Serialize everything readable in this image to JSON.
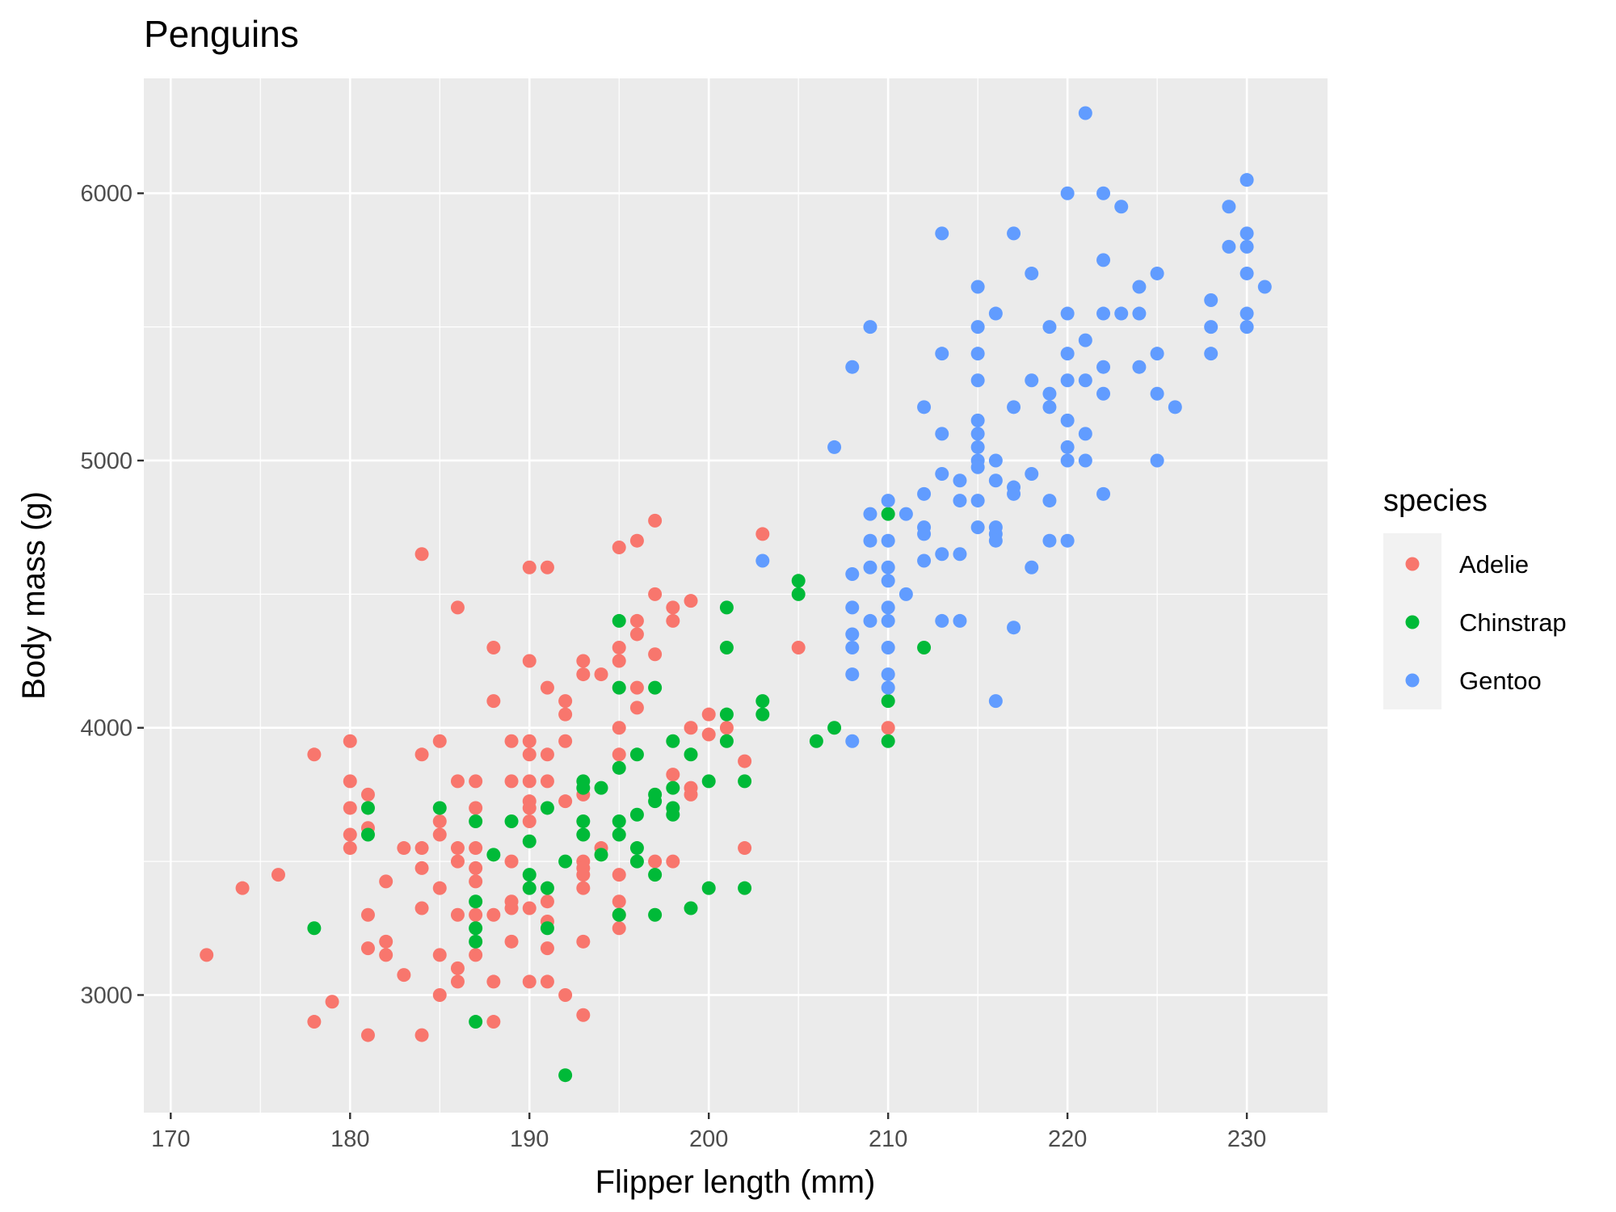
{
  "chart_data": {
    "type": "scatter",
    "title": "Penguins",
    "xlabel": "Flipper length (mm)",
    "ylabel": "Body mass (g)",
    "xlim": [
      168.5,
      234.5
    ],
    "ylim": [
      2560,
      6430
    ],
    "x_ticks": [
      170,
      180,
      190,
      200,
      210,
      220,
      230
    ],
    "y_ticks": [
      3000,
      4000,
      5000,
      6000
    ],
    "grid": true,
    "legend": {
      "title": "species",
      "position": "right"
    },
    "series": [
      {
        "name": "Adelie",
        "color": "#F8766D",
        "points": [
          [
            172,
            3150
          ],
          [
            174,
            3400
          ],
          [
            176,
            3450
          ],
          [
            178,
            3900
          ],
          [
            178,
            2900
          ],
          [
            179,
            2975
          ],
          [
            180,
            3950
          ],
          [
            180,
            3800
          ],
          [
            180,
            3700
          ],
          [
            180,
            3600
          ],
          [
            180,
            3550
          ],
          [
            181,
            3750
          ],
          [
            181,
            3625
          ],
          [
            181,
            3300
          ],
          [
            181,
            3175
          ],
          [
            181,
            2850
          ],
          [
            182,
            3425
          ],
          [
            182,
            3200
          ],
          [
            182,
            3150
          ],
          [
            183,
            3550
          ],
          [
            183,
            3075
          ],
          [
            184,
            4650
          ],
          [
            184,
            3900
          ],
          [
            184,
            3550
          ],
          [
            184,
            3475
          ],
          [
            184,
            3325
          ],
          [
            184,
            2850
          ],
          [
            185,
            3950
          ],
          [
            185,
            3650
          ],
          [
            185,
            3600
          ],
          [
            185,
            3400
          ],
          [
            185,
            3150
          ],
          [
            185,
            3000
          ],
          [
            186,
            4450
          ],
          [
            186,
            3800
          ],
          [
            186,
            3550
          ],
          [
            186,
            3500
          ],
          [
            186,
            3300
          ],
          [
            186,
            3100
          ],
          [
            186,
            3050
          ],
          [
            187,
            3800
          ],
          [
            187,
            3700
          ],
          [
            187,
            3550
          ],
          [
            187,
            3475
          ],
          [
            187,
            3425
          ],
          [
            187,
            3300
          ],
          [
            187,
            3150
          ],
          [
            188,
            4300
          ],
          [
            188,
            4100
          ],
          [
            188,
            3300
          ],
          [
            188,
            3050
          ],
          [
            188,
            2900
          ],
          [
            189,
            3950
          ],
          [
            189,
            3800
          ],
          [
            189,
            3500
          ],
          [
            189,
            3350
          ],
          [
            189,
            3325
          ],
          [
            189,
            3200
          ],
          [
            190,
            4600
          ],
          [
            190,
            4250
          ],
          [
            190,
            3950
          ],
          [
            190,
            3900
          ],
          [
            190,
            3800
          ],
          [
            190,
            3725
          ],
          [
            190,
            3700
          ],
          [
            190,
            3650
          ],
          [
            190,
            3325
          ],
          [
            190,
            3050
          ],
          [
            191,
            4600
          ],
          [
            191,
            4150
          ],
          [
            191,
            3900
          ],
          [
            191,
            3800
          ],
          [
            191,
            3350
          ],
          [
            191,
            3275
          ],
          [
            191,
            3175
          ],
          [
            191,
            3050
          ],
          [
            192,
            4100
          ],
          [
            192,
            4050
          ],
          [
            192,
            3950
          ],
          [
            192,
            3725
          ],
          [
            192,
            3000
          ],
          [
            193,
            4250
          ],
          [
            193,
            4200
          ],
          [
            193,
            3750
          ],
          [
            193,
            3500
          ],
          [
            193,
            3475
          ],
          [
            193,
            3450
          ],
          [
            193,
            3400
          ],
          [
            193,
            3200
          ],
          [
            193,
            2925
          ],
          [
            194,
            4200
          ],
          [
            194,
            3550
          ],
          [
            195,
            4675
          ],
          [
            195,
            4300
          ],
          [
            195,
            4250
          ],
          [
            195,
            4000
          ],
          [
            195,
            3900
          ],
          [
            195,
            3450
          ],
          [
            195,
            3350
          ],
          [
            195,
            3300
          ],
          [
            195,
            3250
          ],
          [
            196,
            4700
          ],
          [
            196,
            4400
          ],
          [
            196,
            4350
          ],
          [
            196,
            4150
          ],
          [
            196,
            4075
          ],
          [
            197,
            4775
          ],
          [
            197,
            4500
          ],
          [
            197,
            4275
          ],
          [
            197,
            3500
          ],
          [
            198,
            4450
          ],
          [
            198,
            4400
          ],
          [
            198,
            3825
          ],
          [
            198,
            3500
          ],
          [
            199,
            4475
          ],
          [
            199,
            4000
          ],
          [
            199,
            3775
          ],
          [
            199,
            3750
          ],
          [
            200,
            4050
          ],
          [
            200,
            3975
          ],
          [
            201,
            4000
          ],
          [
            202,
            3875
          ],
          [
            202,
            3550
          ],
          [
            203,
            4725
          ],
          [
            205,
            4300
          ],
          [
            210,
            4000
          ]
        ]
      },
      {
        "name": "Chinstrap",
        "color": "#00BA38",
        "points": [
          [
            178,
            3250
          ],
          [
            181,
            3700
          ],
          [
            181,
            3600
          ],
          [
            185,
            3700
          ],
          [
            187,
            3650
          ],
          [
            187,
            3350
          ],
          [
            187,
            3250
          ],
          [
            187,
            3200
          ],
          [
            187,
            2900
          ],
          [
            188,
            3525
          ],
          [
            189,
            3650
          ],
          [
            190,
            3575
          ],
          [
            190,
            3450
          ],
          [
            190,
            3400
          ],
          [
            191,
            3700
          ],
          [
            191,
            3400
          ],
          [
            191,
            3250
          ],
          [
            192,
            3500
          ],
          [
            192,
            2700
          ],
          [
            193,
            3800
          ],
          [
            193,
            3775
          ],
          [
            193,
            3650
          ],
          [
            193,
            3600
          ],
          [
            194,
            3775
          ],
          [
            194,
            3525
          ],
          [
            195,
            4400
          ],
          [
            195,
            4150
          ],
          [
            195,
            3850
          ],
          [
            195,
            3650
          ],
          [
            195,
            3600
          ],
          [
            195,
            3300
          ],
          [
            196,
            3900
          ],
          [
            196,
            3675
          ],
          [
            196,
            3550
          ],
          [
            196,
            3500
          ],
          [
            197,
            4150
          ],
          [
            197,
            3750
          ],
          [
            197,
            3725
          ],
          [
            197,
            3450
          ],
          [
            197,
            3300
          ],
          [
            198,
            3950
          ],
          [
            198,
            3775
          ],
          [
            198,
            3700
          ],
          [
            198,
            3675
          ],
          [
            199,
            3900
          ],
          [
            199,
            3325
          ],
          [
            200,
            3800
          ],
          [
            200,
            3400
          ],
          [
            201,
            4450
          ],
          [
            201,
            4300
          ],
          [
            201,
            4050
          ],
          [
            201,
            3950
          ],
          [
            202,
            3800
          ],
          [
            202,
            3400
          ],
          [
            203,
            4100
          ],
          [
            203,
            4050
          ],
          [
            205,
            4550
          ],
          [
            205,
            4500
          ],
          [
            206,
            3950
          ],
          [
            207,
            4000
          ],
          [
            210,
            4800
          ],
          [
            210,
            4100
          ],
          [
            210,
            3950
          ],
          [
            212,
            4300
          ]
        ]
      },
      {
        "name": "Gentoo",
        "color": "#619CFF",
        "points": [
          [
            203,
            4625
          ],
          [
            207,
            5050
          ],
          [
            208,
            5350
          ],
          [
            208,
            4575
          ],
          [
            208,
            4450
          ],
          [
            208,
            4350
          ],
          [
            208,
            4300
          ],
          [
            208,
            4200
          ],
          [
            208,
            3950
          ],
          [
            209,
            5500
          ],
          [
            209,
            4800
          ],
          [
            209,
            4700
          ],
          [
            209,
            4600
          ],
          [
            209,
            4400
          ],
          [
            210,
            4850
          ],
          [
            210,
            4700
          ],
          [
            210,
            4600
          ],
          [
            210,
            4550
          ],
          [
            210,
            4450
          ],
          [
            210,
            4400
          ],
          [
            210,
            4300
          ],
          [
            210,
            4200
          ],
          [
            210,
            4150
          ],
          [
            211,
            4800
          ],
          [
            211,
            4500
          ],
          [
            212,
            5200
          ],
          [
            212,
            4875
          ],
          [
            212,
            4750
          ],
          [
            212,
            4725
          ],
          [
            212,
            4625
          ],
          [
            213,
            5850
          ],
          [
            213,
            5400
          ],
          [
            213,
            5100
          ],
          [
            213,
            4950
          ],
          [
            213,
            4650
          ],
          [
            213,
            4400
          ],
          [
            214,
            4925
          ],
          [
            214,
            4850
          ],
          [
            214,
            4650
          ],
          [
            214,
            4400
          ],
          [
            215,
            5650
          ],
          [
            215,
            5500
          ],
          [
            215,
            5400
          ],
          [
            215,
            5300
          ],
          [
            215,
            5150
          ],
          [
            215,
            5100
          ],
          [
            215,
            5050
          ],
          [
            215,
            5000
          ],
          [
            215,
            4975
          ],
          [
            215,
            4850
          ],
          [
            215,
            4750
          ],
          [
            216,
            5550
          ],
          [
            216,
            5000
          ],
          [
            216,
            4925
          ],
          [
            216,
            4750
          ],
          [
            216,
            4725
          ],
          [
            216,
            4700
          ],
          [
            216,
            4100
          ],
          [
            217,
            5850
          ],
          [
            217,
            5200
          ],
          [
            217,
            4900
          ],
          [
            217,
            4875
          ],
          [
            217,
            4375
          ],
          [
            218,
            5700
          ],
          [
            218,
            5300
          ],
          [
            218,
            4950
          ],
          [
            218,
            4600
          ],
          [
            219,
            5500
          ],
          [
            219,
            5250
          ],
          [
            219,
            5200
          ],
          [
            219,
            4850
          ],
          [
            219,
            4700
          ],
          [
            220,
            6000
          ],
          [
            220,
            5550
          ],
          [
            220,
            5400
          ],
          [
            220,
            5300
          ],
          [
            220,
            5150
          ],
          [
            220,
            5050
          ],
          [
            220,
            5000
          ],
          [
            220,
            4700
          ],
          [
            221,
            6300
          ],
          [
            221,
            5450
          ],
          [
            221,
            5300
          ],
          [
            221,
            5100
          ],
          [
            221,
            5000
          ],
          [
            222,
            6000
          ],
          [
            222,
            5750
          ],
          [
            222,
            5550
          ],
          [
            222,
            5350
          ],
          [
            222,
            5250
          ],
          [
            222,
            4875
          ],
          [
            223,
            5950
          ],
          [
            223,
            5550
          ],
          [
            224,
            5650
          ],
          [
            224,
            5550
          ],
          [
            224,
            5350
          ],
          [
            225,
            5700
          ],
          [
            225,
            5400
          ],
          [
            225,
            5250
          ],
          [
            225,
            5000
          ],
          [
            226,
            5200
          ],
          [
            228,
            5600
          ],
          [
            228,
            5500
          ],
          [
            228,
            5400
          ],
          [
            229,
            5950
          ],
          [
            229,
            5800
          ],
          [
            230,
            6050
          ],
          [
            230,
            5850
          ],
          [
            230,
            5800
          ],
          [
            230,
            5700
          ],
          [
            230,
            5550
          ],
          [
            230,
            5500
          ],
          [
            231,
            5650
          ]
        ]
      }
    ]
  }
}
